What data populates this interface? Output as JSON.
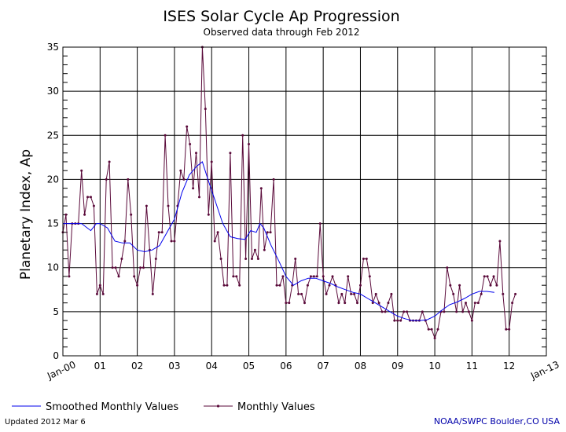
{
  "colors": {
    "smoothed": "#0000ee",
    "monthly": "#5a0a3a",
    "grid": "#000000",
    "credit": "#0000aa"
  },
  "footer": {
    "updated": "Updated 2012 Mar  6",
    "credit": "NOAA/SWPC Boulder,CO USA"
  },
  "chart_data": {
    "type": "line",
    "title": "ISES Solar Cycle Ap Progression",
    "subtitle": "Observed data through Feb 2012",
    "ylabel": "Planetary Index, Ap",
    "xlabel": "",
    "ylim": [
      0,
      35
    ],
    "xlim": [
      2000.0,
      2013.0
    ],
    "y_ticks": [
      0,
      5,
      10,
      15,
      20,
      25,
      30,
      35
    ],
    "x_ticks": [
      {
        "x": 2000,
        "label": "Jan-00",
        "rot": true
      },
      {
        "x": 2001,
        "label": "01"
      },
      {
        "x": 2002,
        "label": "02"
      },
      {
        "x": 2003,
        "label": "03"
      },
      {
        "x": 2004,
        "label": "04"
      },
      {
        "x": 2005,
        "label": "05"
      },
      {
        "x": 2006,
        "label": "06"
      },
      {
        "x": 2007,
        "label": "07"
      },
      {
        "x": 2008,
        "label": "08"
      },
      {
        "x": 2009,
        "label": "09"
      },
      {
        "x": 2010,
        "label": "10"
      },
      {
        "x": 2011,
        "label": "11"
      },
      {
        "x": 2012,
        "label": "12"
      },
      {
        "x": 2013,
        "label": "Jan-13",
        "rot": true
      }
    ],
    "grid": true,
    "legend": {
      "placement": "bottom",
      "entries": [
        "Smoothed Monthly Values",
        "Monthly Values"
      ]
    },
    "series": [
      {
        "name": "Monthly Values",
        "x_start": 2000.0,
        "x_step_months": 1,
        "values": [
          14,
          16,
          9,
          15,
          15,
          15,
          21,
          16,
          18,
          18,
          17,
          7,
          8,
          7,
          20,
          22,
          10,
          10,
          9,
          11,
          13,
          20,
          16,
          9,
          8,
          10,
          10,
          17,
          12,
          7,
          11,
          14,
          14,
          25,
          17,
          13,
          13,
          17,
          21,
          20,
          26,
          24,
          19,
          23,
          18,
          35,
          28,
          16,
          22,
          13,
          14,
          11,
          8,
          8,
          23,
          9,
          9,
          8,
          25,
          11,
          24,
          11,
          12,
          11,
          19,
          12,
          14,
          14,
          20,
          8,
          8,
          9,
          6,
          6,
          8,
          11,
          7,
          7,
          6,
          8,
          9,
          9,
          9,
          15,
          9,
          7,
          8,
          9,
          8,
          6,
          7,
          6,
          9,
          7,
          7,
          6,
          8,
          11,
          11,
          9,
          6,
          7,
          6,
          5,
          5,
          6,
          7,
          4,
          4,
          4,
          5,
          5,
          4,
          4,
          4,
          4,
          5,
          4,
          3,
          3,
          2,
          3,
          5,
          5,
          10,
          8,
          7,
          5,
          8,
          5,
          6,
          5,
          4,
          6,
          6,
          7,
          9,
          9,
          8,
          9,
          8,
          13,
          7,
          3,
          3,
          6,
          7
        ]
      },
      {
        "name": "Smoothed Monthly Values",
        "x": [
          2000.0,
          2000.1,
          2000.3,
          2000.5,
          2000.75,
          2000.9,
          2001.0,
          2001.2,
          2001.4,
          2001.6,
          2001.8,
          2002.0,
          2002.2,
          2002.4,
          2002.6,
          2002.8,
          2003.0,
          2003.2,
          2003.4,
          2003.6,
          2003.75,
          2003.9,
          2004.1,
          2004.3,
          2004.5,
          2004.7,
          2004.9,
          2005.05,
          2005.2,
          2005.3,
          2005.4,
          2005.6,
          2005.8,
          2006.0,
          2006.2,
          2006.4,
          2006.6,
          2006.8,
          2007.0,
          2007.2,
          2007.4,
          2007.6,
          2007.8,
          2008.0,
          2008.2,
          2008.4,
          2008.6,
          2008.8,
          2009.0,
          2009.2,
          2009.4,
          2009.6,
          2009.8,
          2010.0,
          2010.2,
          2010.4,
          2010.6,
          2010.8,
          2011.0,
          2011.2,
          2011.4,
          2011.6
        ],
        "values": [
          15,
          15,
          15,
          15,
          14.2,
          15,
          15,
          14.5,
          13,
          12.8,
          12.8,
          12,
          11.8,
          12,
          12.5,
          14,
          15.5,
          18.5,
          20.5,
          21.5,
          22,
          20,
          17.5,
          15,
          13.5,
          13.3,
          13.2,
          14.2,
          14,
          15,
          14.5,
          12.5,
          10.8,
          9,
          8,
          8.5,
          8.8,
          8.8,
          8.5,
          8.2,
          7.8,
          7.5,
          7.2,
          7,
          6.5,
          6,
          5.5,
          5,
          4.5,
          4.2,
          4,
          4,
          4.1,
          4.5,
          5.2,
          5.8,
          6.1,
          6.5,
          7,
          7.3,
          7.3,
          7.2
        ]
      }
    ]
  }
}
